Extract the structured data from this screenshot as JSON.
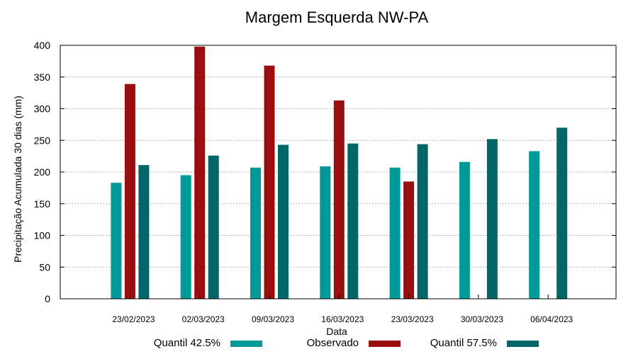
{
  "chart_data": {
    "type": "bar",
    "title": "Margem Esquerda NW-PA",
    "xlabel": "Data",
    "ylabel": "Precipitação Acumulada 30 dias (mm)",
    "ylim": [
      0,
      400
    ],
    "yticks": [
      0,
      50,
      100,
      150,
      200,
      250,
      300,
      350,
      400
    ],
    "grid": true,
    "legend_position": "bottom",
    "categories": [
      "23/02/2023",
      "02/03/2023",
      "09/03/2023",
      "16/03/2023",
      "23/03/2023",
      "30/03/2023",
      "06/04/2023"
    ],
    "series": [
      {
        "name": "Quantil 42.5%",
        "color": "#009999",
        "values": [
          183,
          195,
          207,
          209,
          207,
          216,
          233
        ]
      },
      {
        "name": "Observado",
        "color": "#990f0f",
        "values": [
          339,
          398,
          368,
          313,
          185,
          null,
          null
        ]
      },
      {
        "name": "Quantil 57.5%",
        "color": "#006666",
        "values": [
          211,
          226,
          243,
          245,
          244,
          252,
          270
        ]
      }
    ]
  }
}
